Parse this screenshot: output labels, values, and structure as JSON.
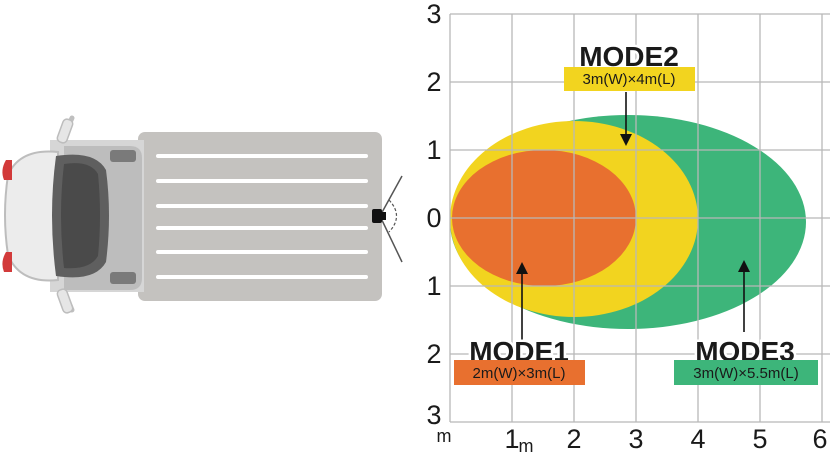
{
  "colors": {
    "mode1": "#E8702F",
    "mode2": "#F2D41F",
    "mode3": "#3DB57A",
    "grid": "#bbbbbb",
    "truck_body": "#c4c2bf",
    "truck_cab": "#f2f2f2",
    "taillight": "#d23a3a"
  },
  "icons": {
    "truck": "truck-top-view-icon",
    "camera": "rear-camera-icon"
  },
  "y_axis_labels": [
    "3",
    "2",
    "1",
    "0",
    "1",
    "2",
    "3"
  ],
  "x_axis_labels": [
    "1",
    "2",
    "3",
    "4",
    "5",
    "6"
  ],
  "unit_corner": "m",
  "unit_x": "m",
  "modes": [
    {
      "id": "mode1",
      "title": "MODE1",
      "spec": "2m(W)×3m(L)",
      "width_m": 2,
      "length_m": 3
    },
    {
      "id": "mode2",
      "title": "MODE2",
      "spec": "3m(W)×4m(L)",
      "width_m": 3,
      "length_m": 4
    },
    {
      "id": "mode3",
      "title": "MODE3",
      "spec": "3m(W)×5.5m(L)",
      "width_m": 3,
      "length_m": 5.5
    }
  ]
}
